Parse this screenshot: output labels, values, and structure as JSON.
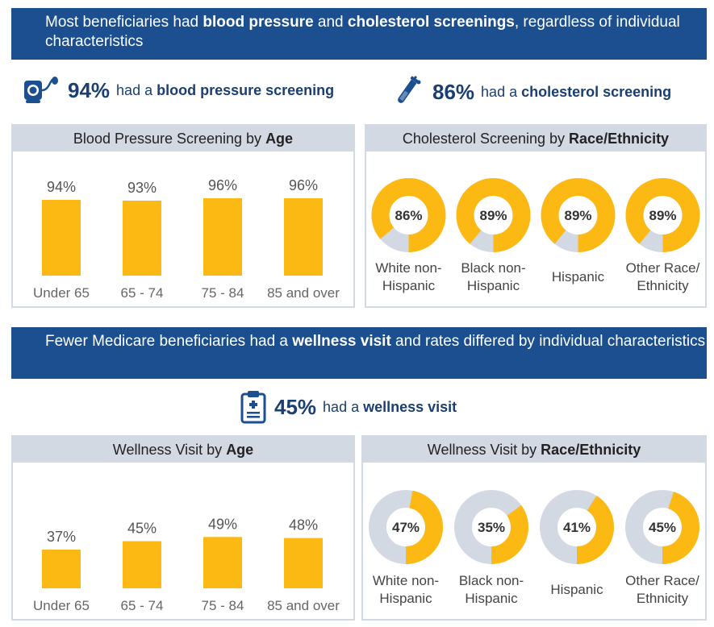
{
  "colors": {
    "accent": "#fdb913",
    "track": "#d3d9e3",
    "navy": "#1b4f8f",
    "text_navy": "#1b3f70"
  },
  "banner1": {
    "pre": "Most beneficiaries had ",
    "b1": "blood pressure",
    "mid": " and ",
    "b2": "cholesterol screenings",
    "post": ", regardless of individual characteristics"
  },
  "stat_bp": {
    "icon": "blood-pressure-cuff-icon",
    "pct": "94%",
    "pre": "had a ",
    "bold": "blood pressure screening"
  },
  "stat_chol": {
    "icon": "test-tube-icon",
    "pct": "86%",
    "pre": "had a ",
    "bold": "cholesterol screening"
  },
  "banner2": {
    "pre": "Fewer Medicare beneficiaries had a ",
    "b1": "wellness visit",
    "post": " and rates differed by individual characteristics"
  },
  "stat_well": {
    "icon": "clipboard-icon",
    "pct": "45%",
    "pre": "had a ",
    "bold": "wellness visit"
  },
  "chart_data": [
    {
      "type": "bar",
      "title_pre": "Blood Pressure Screening by ",
      "title_bold": "Age",
      "categories": [
        "Under 65",
        "65 - 74",
        "75 - 84",
        "85 and over"
      ],
      "values": [
        94,
        93,
        96,
        96
      ],
      "labels": [
        "94%",
        "93%",
        "96%",
        "96%"
      ],
      "ylim": [
        0,
        100
      ]
    },
    {
      "type": "pie",
      "title_pre": "Cholesterol Screening by ",
      "title_bold": "Race/Ethnicity",
      "categories": [
        [
          "White non-",
          "Hispanic"
        ],
        [
          "Black non-",
          "Hispanic"
        ],
        [
          "Hispanic"
        ],
        [
          "Other Race/",
          "Ethnicity"
        ]
      ],
      "values": [
        86,
        89,
        89,
        89
      ],
      "labels": [
        "86%",
        "89%",
        "89%",
        "89%"
      ]
    },
    {
      "type": "bar",
      "title_pre": "Wellness Visit by ",
      "title_bold": "Age",
      "categories": [
        "Under 65",
        "65 - 74",
        "75 - 84",
        "85 and over"
      ],
      "values": [
        37,
        45,
        49,
        48
      ],
      "labels": [
        "37%",
        "45%",
        "49%",
        "48%"
      ],
      "ylim": [
        0,
        100
      ]
    },
    {
      "type": "pie",
      "title_pre": "Wellness Visit by ",
      "title_bold": "Race/Ethnicity",
      "categories": [
        [
          "White non-",
          "Hispanic"
        ],
        [
          "Black non-",
          "Hispanic"
        ],
        [
          "Hispanic"
        ],
        [
          "Other Race/",
          "Ethnicity"
        ]
      ],
      "values": [
        47,
        35,
        41,
        45
      ],
      "labels": [
        "47%",
        "35%",
        "41%",
        "45%"
      ]
    }
  ]
}
